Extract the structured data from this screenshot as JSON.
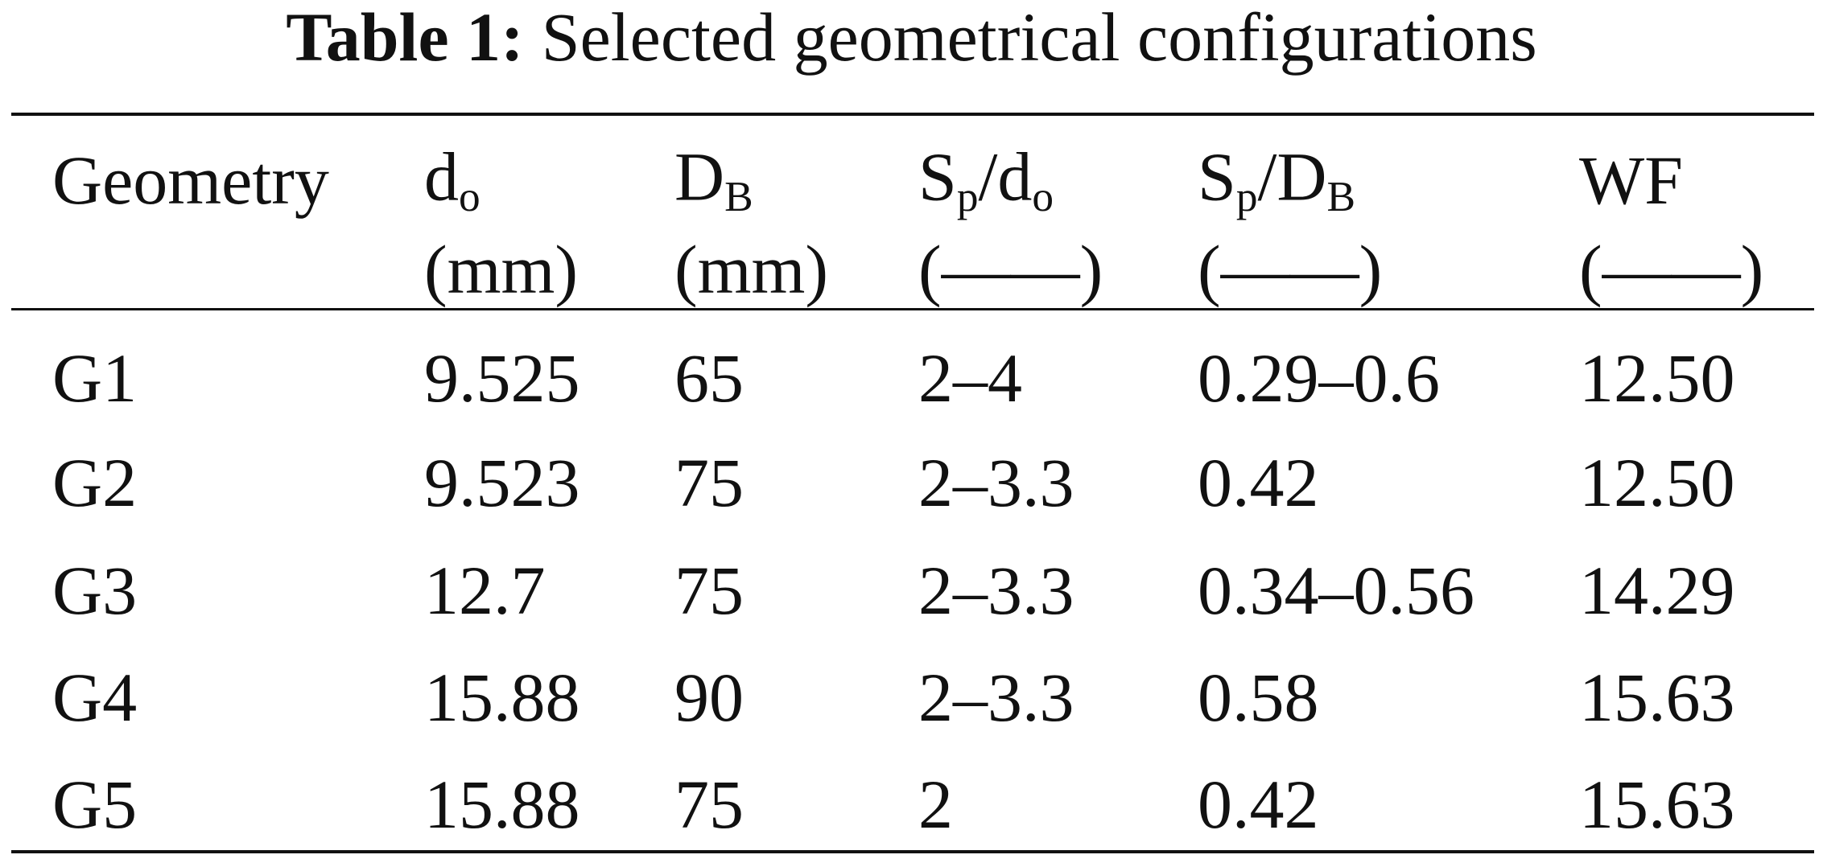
{
  "title": {
    "label": "Table 1:",
    "text": "Selected geometrical configurations"
  },
  "table": {
    "headers": [
      {
        "label": [
          [
            "Geometry"
          ]
        ]
      },
      {
        "label": [
          [
            "d",
            "o"
          ]
        ],
        "unit": "(mm)"
      },
      {
        "label": [
          [
            "D",
            "B"
          ]
        ],
        "unit": "(mm)"
      },
      {
        "label": [
          [
            "S",
            "p"
          ],
          [
            "/d",
            "o"
          ]
        ],
        "unit": "(——)"
      },
      {
        "label": [
          [
            "S",
            "p"
          ],
          [
            "/D",
            "B"
          ]
        ],
        "unit": "(——)"
      },
      {
        "label": [
          [
            "WF"
          ]
        ],
        "unit": "(——)"
      }
    ],
    "rows": [
      [
        "G1",
        "9.525",
        "65",
        "2–4",
        "0.29–0.6",
        "12.50"
      ],
      [
        "G2",
        "9.523",
        "75",
        "2–3.3",
        "0.42",
        "12.50"
      ],
      [
        "G3",
        "12.7",
        "75",
        "2–3.3",
        "0.34–0.56",
        "14.29"
      ],
      [
        "G4",
        "15.88",
        "90",
        "2–3.3",
        "0.58",
        "15.63"
      ],
      [
        "G5",
        "15.88",
        "75",
        "2",
        "0.42",
        "15.63"
      ]
    ]
  }
}
